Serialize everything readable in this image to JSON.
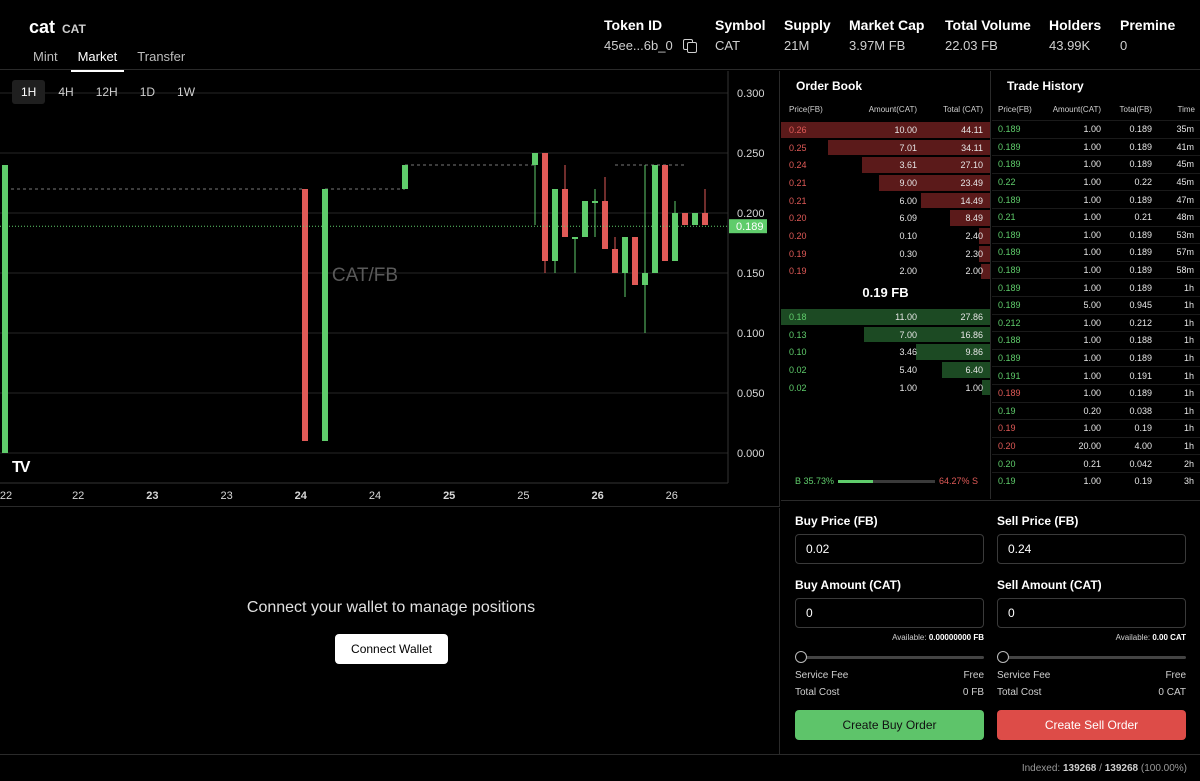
{
  "token": {
    "name": "cat",
    "ticker": "CAT"
  },
  "tabs": [
    "Mint",
    "Market",
    "Transfer"
  ],
  "stats": {
    "token_id": {
      "label": "Token ID",
      "value": "45ee...6b_0"
    },
    "symbol": {
      "label": "Symbol",
      "value": "CAT"
    },
    "supply": {
      "label": "Supply",
      "value": "21M"
    },
    "market_cap": {
      "label": "Market Cap",
      "value": "3.97M FB"
    },
    "total_volume": {
      "label": "Total Volume",
      "value": "22.03 FB"
    },
    "holders": {
      "label": "Holders",
      "value": "43.99K"
    },
    "premine": {
      "label": "Premine",
      "value": "0"
    }
  },
  "chart": {
    "timeframes": [
      "1H",
      "4H",
      "12H",
      "1D",
      "1W"
    ],
    "active_timeframe": "1H",
    "watermark": "CAT/FB",
    "logo": "TV",
    "y_ticks": [
      "0.300",
      "0.250",
      "0.200",
      "0.150",
      "0.100",
      "0.050",
      "0.000"
    ],
    "x_ticks": [
      {
        "label": "22",
        "bold": false
      },
      {
        "label": "22",
        "bold": false
      },
      {
        "label": "23",
        "bold": true
      },
      {
        "label": "23",
        "bold": false
      },
      {
        "label": "24",
        "bold": true
      },
      {
        "label": "24",
        "bold": false
      },
      {
        "label": "25",
        "bold": true
      },
      {
        "label": "25",
        "bold": false
      },
      {
        "label": "26",
        "bold": true
      },
      {
        "label": "26",
        "bold": false
      }
    ],
    "last_price": "0.189",
    "colors": {
      "up": "#5fcc6b",
      "down": "#e05a57"
    }
  },
  "chart_data": {
    "type": "candlestick",
    "title": "CAT/FB",
    "xlabel": "",
    "ylabel": "",
    "ylim": [
      0,
      0.3
    ],
    "last_price": 0.189,
    "candles": [
      {
        "t": 0,
        "o": 0.0,
        "h": 0.24,
        "l": 0.0,
        "c": 0.24
      },
      {
        "t": 30,
        "o": 0.22,
        "h": 0.22,
        "l": 0.01,
        "c": 0.01
      },
      {
        "t": 32,
        "o": 0.01,
        "h": 0.22,
        "l": 0.01,
        "c": 0.22
      },
      {
        "t": 40,
        "o": 0.22,
        "h": 0.24,
        "l": 0.22,
        "c": 0.24
      },
      {
        "t": 53,
        "o": 0.24,
        "h": 0.25,
        "l": 0.19,
        "c": 0.25
      },
      {
        "t": 54,
        "o": 0.25,
        "h": 0.25,
        "l": 0.15,
        "c": 0.16
      },
      {
        "t": 55,
        "o": 0.16,
        "h": 0.22,
        "l": 0.15,
        "c": 0.22
      },
      {
        "t": 56,
        "o": 0.22,
        "h": 0.24,
        "l": 0.18,
        "c": 0.18
      },
      {
        "t": 57,
        "o": 0.18,
        "h": 0.18,
        "l": 0.15,
        "c": 0.18
      },
      {
        "t": 58,
        "o": 0.18,
        "h": 0.21,
        "l": 0.18,
        "c": 0.21
      },
      {
        "t": 59,
        "o": 0.21,
        "h": 0.22,
        "l": 0.18,
        "c": 0.21
      },
      {
        "t": 60,
        "o": 0.21,
        "h": 0.23,
        "l": 0.17,
        "c": 0.17
      },
      {
        "t": 61,
        "o": 0.17,
        "h": 0.18,
        "l": 0.15,
        "c": 0.15
      },
      {
        "t": 62,
        "o": 0.15,
        "h": 0.18,
        "l": 0.13,
        "c": 0.18
      },
      {
        "t": 63,
        "o": 0.18,
        "h": 0.18,
        "l": 0.14,
        "c": 0.14
      },
      {
        "t": 64,
        "o": 0.14,
        "h": 0.24,
        "l": 0.1,
        "c": 0.15
      },
      {
        "t": 65,
        "o": 0.15,
        "h": 0.24,
        "l": 0.15,
        "c": 0.24
      },
      {
        "t": 66,
        "o": 0.24,
        "h": 0.24,
        "l": 0.16,
        "c": 0.16
      },
      {
        "t": 67,
        "o": 0.16,
        "h": 0.21,
        "l": 0.16,
        "c": 0.2
      },
      {
        "t": 68,
        "o": 0.2,
        "h": 0.2,
        "l": 0.19,
        "c": 0.19
      },
      {
        "t": 69,
        "o": 0.19,
        "h": 0.2,
        "l": 0.19,
        "c": 0.2
      },
      {
        "t": 70,
        "o": 0.2,
        "h": 0.22,
        "l": 0.19,
        "c": 0.19
      }
    ]
  },
  "order_book": {
    "title": "Order Book",
    "headers": [
      "Price(FB)",
      "Amount(CAT)",
      "Total (CAT)"
    ],
    "asks": [
      {
        "price": "0.26",
        "amount": "10.00",
        "total": "44.11",
        "depth": 1.0
      },
      {
        "price": "0.25",
        "amount": "7.01",
        "total": "34.11",
        "depth": 0.775
      },
      {
        "price": "0.24",
        "amount": "3.61",
        "total": "27.10",
        "depth": 0.614
      },
      {
        "price": "0.21",
        "amount": "9.00",
        "total": "23.49",
        "depth": 0.533
      },
      {
        "price": "0.21",
        "amount": "6.00",
        "total": "14.49",
        "depth": 0.329
      },
      {
        "price": "0.20",
        "amount": "6.09",
        "total": "8.49",
        "depth": 0.192
      },
      {
        "price": "0.20",
        "amount": "0.10",
        "total": "2.40",
        "depth": 0.055
      },
      {
        "price": "0.19",
        "amount": "0.30",
        "total": "2.30",
        "depth": 0.052
      },
      {
        "price": "0.19",
        "amount": "2.00",
        "total": "2.00",
        "depth": 0.045
      }
    ],
    "mid_price": "0.19 FB",
    "bids": [
      {
        "price": "0.18",
        "amount": "11.00",
        "total": "27.86",
        "depth": 1.0
      },
      {
        "price": "0.13",
        "amount": "7.00",
        "total": "16.86",
        "depth": 0.605
      },
      {
        "price": "0.10",
        "amount": "3.46",
        "total": "9.86",
        "depth": 0.354
      },
      {
        "price": "0.02",
        "amount": "5.40",
        "total": "6.40",
        "depth": 0.23
      },
      {
        "price": "0.02",
        "amount": "1.00",
        "total": "1.00",
        "depth": 0.036
      }
    ],
    "buy_ratio": "B 35.73%",
    "sell_ratio": "64.27% S",
    "buy_fraction": 0.3573
  },
  "trade_history": {
    "title": "Trade History",
    "headers": [
      "Price(FB)",
      "Amount(CAT)",
      "Total(FB)",
      "Time"
    ],
    "rows": [
      {
        "price": "0.189",
        "amount": "1.00",
        "total": "0.189",
        "time": "35m",
        "side": "buy"
      },
      {
        "price": "0.189",
        "amount": "1.00",
        "total": "0.189",
        "time": "41m",
        "side": "buy"
      },
      {
        "price": "0.189",
        "amount": "1.00",
        "total": "0.189",
        "time": "45m",
        "side": "buy"
      },
      {
        "price": "0.22",
        "amount": "1.00",
        "total": "0.22",
        "time": "45m",
        "side": "buy"
      },
      {
        "price": "0.189",
        "amount": "1.00",
        "total": "0.189",
        "time": "47m",
        "side": "buy"
      },
      {
        "price": "0.21",
        "amount": "1.00",
        "total": "0.21",
        "time": "48m",
        "side": "buy"
      },
      {
        "price": "0.189",
        "amount": "1.00",
        "total": "0.189",
        "time": "53m",
        "side": "buy"
      },
      {
        "price": "0.189",
        "amount": "1.00",
        "total": "0.189",
        "time": "57m",
        "side": "buy"
      },
      {
        "price": "0.189",
        "amount": "1.00",
        "total": "0.189",
        "time": "58m",
        "side": "buy"
      },
      {
        "price": "0.189",
        "amount": "1.00",
        "total": "0.189",
        "time": "1h",
        "side": "buy"
      },
      {
        "price": "0.189",
        "amount": "5.00",
        "total": "0.945",
        "time": "1h",
        "side": "buy"
      },
      {
        "price": "0.212",
        "amount": "1.00",
        "total": "0.212",
        "time": "1h",
        "side": "buy"
      },
      {
        "price": "0.188",
        "amount": "1.00",
        "total": "0.188",
        "time": "1h",
        "side": "buy"
      },
      {
        "price": "0.189",
        "amount": "1.00",
        "total": "0.189",
        "time": "1h",
        "side": "buy"
      },
      {
        "price": "0.191",
        "amount": "1.00",
        "total": "0.191",
        "time": "1h",
        "side": "buy"
      },
      {
        "price": "0.189",
        "amount": "1.00",
        "total": "0.189",
        "time": "1h",
        "side": "sell"
      },
      {
        "price": "0.19",
        "amount": "0.20",
        "total": "0.038",
        "time": "1h",
        "side": "buy"
      },
      {
        "price": "0.19",
        "amount": "1.00",
        "total": "0.19",
        "time": "1h",
        "side": "sell"
      },
      {
        "price": "0.20",
        "amount": "20.00",
        "total": "4.00",
        "time": "1h",
        "side": "sell"
      },
      {
        "price": "0.20",
        "amount": "0.21",
        "total": "0.042",
        "time": "2h",
        "side": "buy"
      },
      {
        "price": "0.19",
        "amount": "1.00",
        "total": "0.19",
        "time": "3h",
        "side": "buy"
      }
    ]
  },
  "positions": {
    "message": "Connect your wallet to manage positions",
    "button": "Connect Wallet"
  },
  "buy_form": {
    "price_label": "Buy Price (FB)",
    "price_value": "0.02",
    "amount_label": "Buy Amount (CAT)",
    "amount_value": "0",
    "available_label": "Available:",
    "available_value": "0.00000000 FB",
    "slider_level": 0,
    "fee_label": "Service Fee",
    "fee_value": "Free",
    "cost_label": "Total Cost",
    "cost_value": "0 FB",
    "button": "Create Buy Order"
  },
  "sell_form": {
    "price_label": "Sell Price (FB)",
    "price_value": "0.24",
    "amount_label": "Sell Amount (CAT)",
    "amount_value": "0",
    "available_label": "Available:",
    "available_value": "0.00 CAT",
    "slider_level": 0,
    "fee_label": "Service Fee",
    "fee_value": "Free",
    "cost_label": "Total Cost",
    "cost_value": "0 CAT",
    "button": "Create Sell Order"
  },
  "footer": {
    "label": "Indexed:",
    "current": "139268",
    "total": "139268",
    "percent": "(100.00%)"
  }
}
